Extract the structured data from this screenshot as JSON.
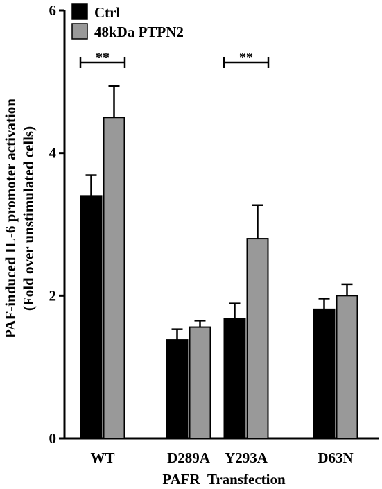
{
  "chart_data": {
    "type": "bar",
    "categories": [
      "WT",
      "D289A",
      "Y293A",
      "D63N"
    ],
    "series": [
      {
        "name": "Ctrl",
        "color": "#000000",
        "values": [
          3.4,
          1.38,
          1.68,
          1.81
        ],
        "errors": [
          0.29,
          0.15,
          0.21,
          0.15
        ]
      },
      {
        "name": "48kDa PTPN2",
        "color": "#999999",
        "values": [
          4.5,
          1.56,
          2.8,
          2.0
        ],
        "errors": [
          0.44,
          0.09,
          0.47,
          0.16
        ]
      }
    ],
    "xlabel": "PAFR  Transfection",
    "ylabel_line1": "PAF-induced IL-6 promoter activation",
    "ylabel_line2": "(Fold over unstimulated cells)",
    "ylim": [
      0,
      6
    ],
    "yticks": [
      0,
      2,
      4,
      6
    ],
    "yticklabels": [
      "0",
      "2",
      "4",
      "6"
    ],
    "grid": false,
    "legend_position": "top-left",
    "annotations": [
      {
        "text": "**",
        "category_index": 0,
        "level": 5.3
      },
      {
        "text": "**",
        "category_index": 2,
        "level": 5.3
      }
    ]
  }
}
